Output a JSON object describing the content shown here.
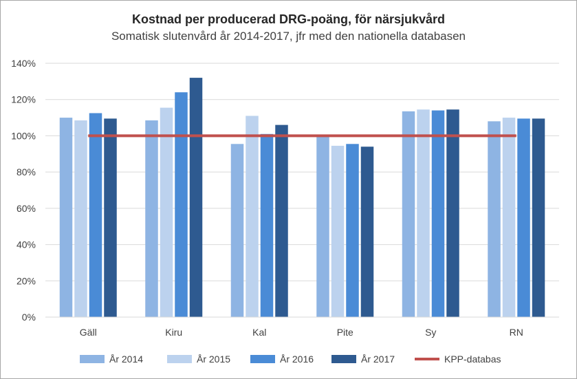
{
  "chart_data": {
    "type": "bar",
    "title": "Kostnad per producerad DRG-poäng, för närsjukvård",
    "subtitle": "Somatisk slutenvård år 2014-2017, jfr med den nationella databasen",
    "categories": [
      "Gäll",
      "Kiru",
      "Kal",
      "Pite",
      "Sy",
      "RN"
    ],
    "series": [
      {
        "name": "År 2014",
        "color": "#8eb4e3",
        "values": [
          110,
          108.5,
          95.5,
          100,
          113.5,
          108
        ]
      },
      {
        "name": "År 2015",
        "color": "#bcd2ee",
        "values": [
          108.5,
          115.5,
          111,
          94.5,
          114.5,
          110
        ]
      },
      {
        "name": "År 2016",
        "color": "#4a8bd6",
        "values": [
          112.5,
          124,
          101,
          95.5,
          114,
          109.5
        ]
      },
      {
        "name": "År 2017",
        "color": "#2e5a90",
        "values": [
          109.5,
          132,
          106,
          94,
          114.5,
          109.5
        ]
      }
    ],
    "reference_line": {
      "name": "KPP-databas",
      "value": 100,
      "color": "#c0504d"
    },
    "ylim": [
      0,
      140
    ],
    "yticks": [
      0,
      20,
      40,
      60,
      80,
      100,
      120,
      140
    ],
    "ytick_labels": [
      "0%",
      "20%",
      "40%",
      "60%",
      "80%",
      "100%",
      "120%",
      "140%"
    ],
    "grid": true,
    "legend_position": "bottom"
  }
}
